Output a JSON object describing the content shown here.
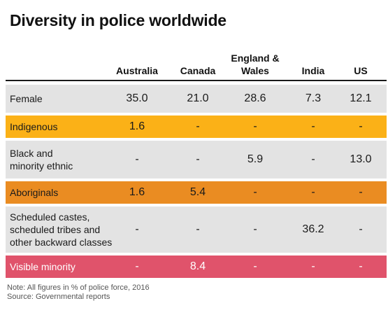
{
  "title": "Diversity in police worldwide",
  "chart_data": {
    "type": "table",
    "title": "Diversity in police worldwide",
    "columns": [
      "Australia",
      "Canada",
      "England &\nWales",
      "India",
      "US"
    ],
    "rows": [
      {
        "label": "Female",
        "values": [
          "35.0",
          "21.0",
          "28.6",
          "7.3",
          "12.1"
        ],
        "color": "#e3e3e3",
        "text_color": "#1a1a1a"
      },
      {
        "label": "Indigenous",
        "values": [
          "1.6",
          "-",
          "-",
          "-",
          "-"
        ],
        "color": "#fbb117",
        "text_color": "#1a1a1a"
      },
      {
        "label": "Black and\nminority ethnic",
        "values": [
          "-",
          "-",
          "5.9",
          "-",
          "13.0"
        ],
        "color": "#e3e3e3",
        "text_color": "#1a1a1a"
      },
      {
        "label": "Aboriginals",
        "values": [
          "1.6",
          "5.4",
          "-",
          "-",
          "-"
        ],
        "color": "#ea8c22",
        "text_color": "#1a1a1a"
      },
      {
        "label": "Scheduled castes,\nscheduled tribes and\nother backward classes",
        "values": [
          "-",
          "-",
          "-",
          "36.2",
          "-"
        ],
        "color": "#e3e3e3",
        "text_color": "#1a1a1a"
      },
      {
        "label": "Visible minority",
        "values": [
          "-",
          "8.4",
          "-",
          "-",
          "-"
        ],
        "color": "#e0536b",
        "text_color": "#ffffff"
      }
    ]
  },
  "note": "Note: All figures in % of police force, 2016",
  "source": "Source: Governmental reports"
}
